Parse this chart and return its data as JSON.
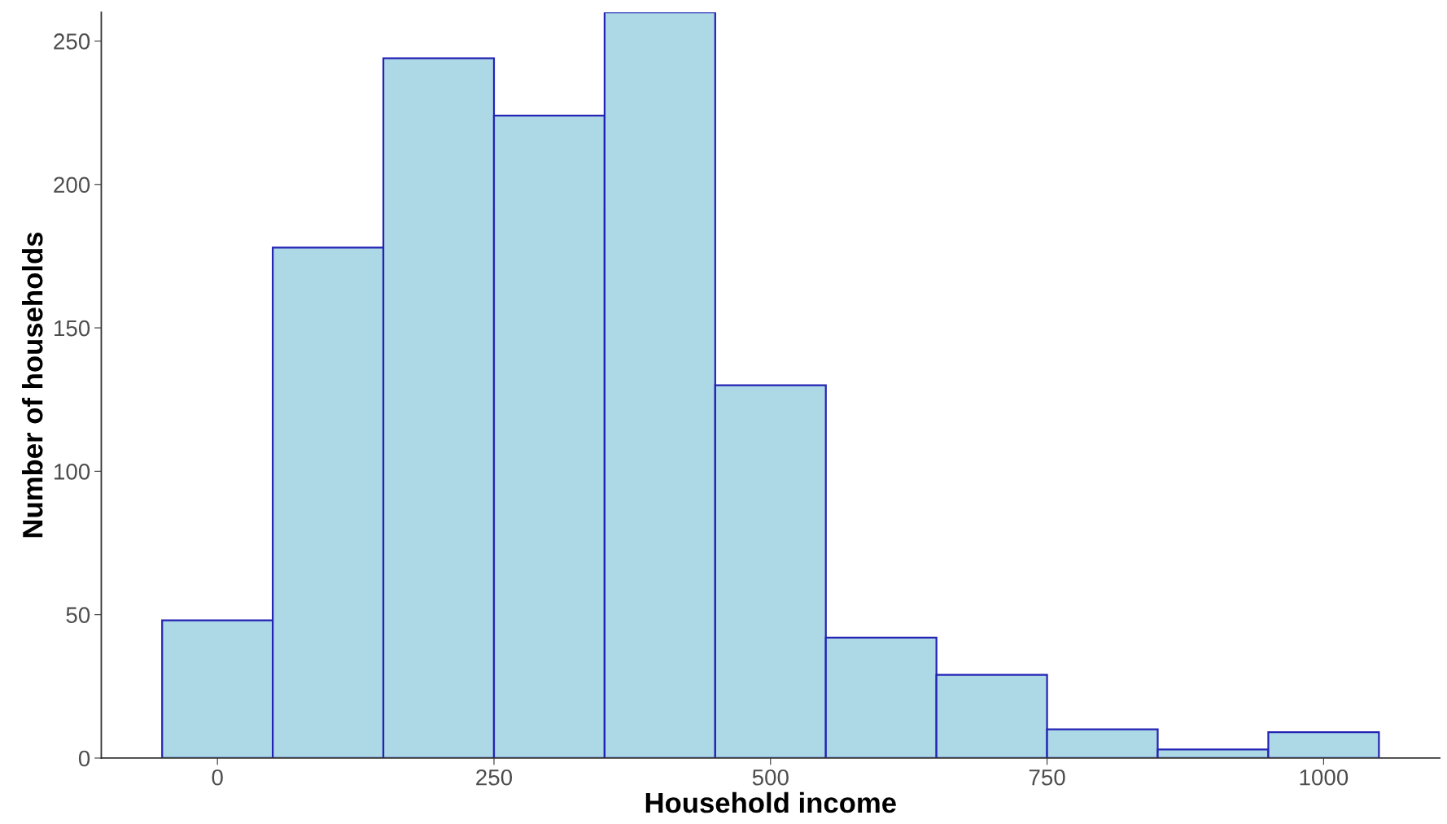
{
  "chart_data": {
    "type": "histogram",
    "xlabel": "Household income",
    "ylabel": "Number of households",
    "bins": [
      -50,
      50,
      150,
      250,
      350,
      450,
      550,
      650,
      750,
      850,
      950,
      1050
    ],
    "values": [
      48,
      178,
      244,
      224,
      260,
      130,
      42,
      29,
      10,
      3,
      9
    ],
    "color": "#add8e6",
    "xlim": [
      -105,
      1105
    ],
    "xticks": [
      0,
      250,
      500,
      750,
      1000
    ],
    "ylim": [
      0,
      260
    ],
    "yticks": [
      0,
      50,
      100,
      150,
      200,
      250
    ],
    "grid": false
  }
}
